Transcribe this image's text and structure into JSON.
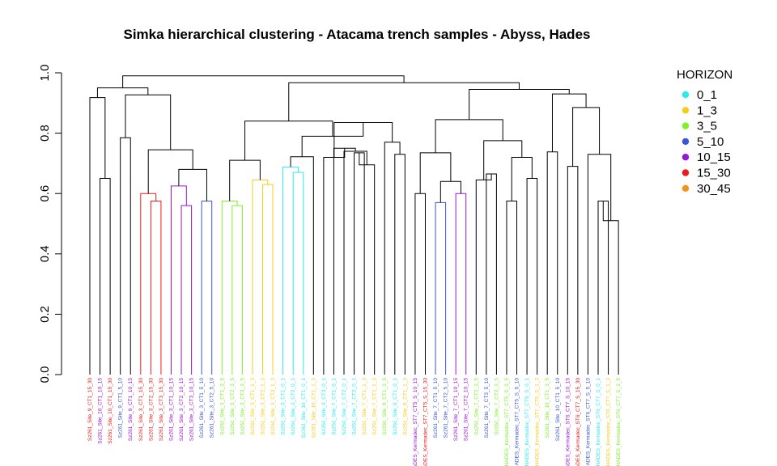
{
  "chart_data": {
    "type": "dendrogram",
    "title": "Simka hierarchical clustering - Atacama trench samples - Abyss, Hades",
    "ylim": [
      0,
      1
    ],
    "yticks": [
      0.0,
      0.2,
      0.4,
      0.6,
      0.8,
      1.0
    ],
    "grid": false,
    "legend": {
      "title": "HORIZON",
      "placement": "right",
      "entries": [
        {
          "name": "0_1",
          "color": "#29ecf2"
        },
        {
          "name": "1_3",
          "color": "#f7cc1c"
        },
        {
          "name": "3_5",
          "color": "#7df22b"
        },
        {
          "name": "5_10",
          "color": "#3a55d6"
        },
        {
          "name": "10_15",
          "color": "#9a14d6"
        },
        {
          "name": "15_30",
          "color": "#ee1b1b"
        },
        {
          "name": "30_45",
          "color": "#f29418"
        }
      ]
    },
    "leaves": [
      {
        "label": "Sz261_Site_9_CT1_15_30",
        "horizon": "15_30"
      },
      {
        "label": "Sz261_Site_10_CT1_10_15",
        "horizon": "10_15"
      },
      {
        "label": "Sz261_Site_10_CT1_15_30",
        "horizon": "15_30"
      },
      {
        "label": "Sz261_Site_9_CT1_5_10",
        "horizon": "5_10"
      },
      {
        "label": "Sz261_Site_9_CT1_10_15",
        "horizon": "10_15"
      },
      {
        "label": "Sz261_Site_3_CT1_15_30",
        "horizon": "15_30"
      },
      {
        "label": "Sz261_Site_3_CT2_15_30",
        "horizon": "15_30"
      },
      {
        "label": "Sz261_Site_3_CT3_15_30",
        "horizon": "15_30"
      },
      {
        "label": "Sz261_Site_3_CT1_10_15",
        "horizon": "10_15"
      },
      {
        "label": "Sz261_Site_3_CT2_10_15",
        "horizon": "10_15"
      },
      {
        "label": "Sz261_Site_3_CT3_10_15",
        "horizon": "10_15"
      },
      {
        "label": "Sz261_Site_3_CT1_5_10",
        "horizon": "5_10"
      },
      {
        "label": "Sz261_Site_3_CT2_5_10",
        "horizon": "5_10"
      },
      {
        "label": "Sz261_Site_3_CT1_3_5",
        "horizon": "3_5"
      },
      {
        "label": "Sz261_Site_3_CT2_3_5",
        "horizon": "3_5"
      },
      {
        "label": "Sz261_Site_3_CT3_3_5",
        "horizon": "3_5"
      },
      {
        "label": "Sz261_Site_3_CT1_1_3",
        "horizon": "1_3"
      },
      {
        "label": "Sz261_Site_3_CT2_1_3",
        "horizon": "1_3"
      },
      {
        "label": "Sz261_Site_3_CT3_1_3",
        "horizon": "1_3"
      },
      {
        "label": "Sz261_Site_3_CT1_0_1",
        "horizon": "0_1"
      },
      {
        "label": "Sz261_Site_3_CT2_0_1",
        "horizon": "0_1"
      },
      {
        "label": "Sz261_Site_10_CT1_0_1",
        "horizon": "0_1"
      },
      {
        "label": "Sz261_Site_10_CT1_1_3",
        "horizon": "1_3"
      },
      {
        "label": "Sz261_Site_3_CT3_0_1",
        "horizon": "0_1"
      },
      {
        "label": "Sz261_Site_7_CT1_0_1",
        "horizon": "0_1"
      },
      {
        "label": "Sz261_Site_7_CT2_0_1",
        "horizon": "0_1"
      },
      {
        "label": "Sz261_Site_7_CT3_0_1",
        "horizon": "0_1"
      },
      {
        "label": "Sz261_Site_7_CT1_1_3",
        "horizon": "1_3"
      },
      {
        "label": "Sz261_Site_7_CT2_1_3",
        "horizon": "1_3"
      },
      {
        "label": "Sz261_Site_9_CT1_3_5",
        "horizon": "3_5"
      },
      {
        "label": "Sz261_Site_9_CT1_0_1",
        "horizon": "0_1"
      },
      {
        "label": "Sz261_Site_9_CT1_1_3",
        "horizon": "1_3"
      },
      {
        "label": "HADES_Kermadec_ST7_CT5_S_10_15",
        "horizon": "10_15"
      },
      {
        "label": "HADES_Kermadec_ST7_CT5_S_15_30",
        "horizon": "15_30"
      },
      {
        "label": "Sz261_Site_7_CT1_5_10",
        "horizon": "5_10"
      },
      {
        "label": "Sz261_Site_7_CT2_5_10",
        "horizon": "5_10"
      },
      {
        "label": "Sz261_Site_7_CT1_10_15",
        "horizon": "10_15"
      },
      {
        "label": "Sz261_Site_7_CT2_10_15",
        "horizon": "10_15"
      },
      {
        "label": "Sz261_Site_7_CT2_3_5",
        "horizon": "3_5"
      },
      {
        "label": "Sz261_Site_7_CT3_5_10",
        "horizon": "5_10"
      },
      {
        "label": "Sz261_Site_7_CT3_3_5",
        "horizon": "3_5"
      },
      {
        "label": "HADES_Kermadec_ST7_CT5_S_3_5",
        "horizon": "3_5"
      },
      {
        "label": "HADES_Kermadec_ST7_CT5_S_5_10",
        "horizon": "5_10"
      },
      {
        "label": "HADES_Kermadec_ST7_CT5_S_0_1",
        "horizon": "0_1"
      },
      {
        "label": "HADES_Kermadec_ST7_CT5_S_1_3",
        "horizon": "1_3"
      },
      {
        "label": "Sz261_Site_10_CT1_3_5",
        "horizon": "3_5"
      },
      {
        "label": "Sz261_Site_10_CT1_5_10",
        "horizon": "5_10"
      },
      {
        "label": "HADES_Kermadec_ST6_CT7_S_10_15",
        "horizon": "10_15"
      },
      {
        "label": "HADES_Kermadec_ST6_CT7_S_15_30",
        "horizon": "15_30"
      },
      {
        "label": "HADES_Kermadec_ST6_CT7_S_5_10",
        "horizon": "5_10"
      },
      {
        "label": "HADES_Kermadec_ST6_CT7_S_0_1",
        "horizon": "0_1"
      },
      {
        "label": "HADES_Kermadec_ST6_CT7_S_1_3",
        "horizon": "1_3"
      },
      {
        "label": "HADES_Kermadec_ST6_CT7_S_3_5",
        "horizon": "3_5"
      }
    ],
    "merges": [
      {
        "a": "L3",
        "b": "L4",
        "h": 0.785
      },
      {
        "a": "L1",
        "b": "L2",
        "h": 0.65
      },
      {
        "a": "L0",
        "b": "N1",
        "h": 0.918
      },
      {
        "a": "L6",
        "b": "L7",
        "h": 0.575
      },
      {
        "a": "L5",
        "b": "N3",
        "h": 0.6
      },
      {
        "a": "L9",
        "b": "L10",
        "h": 0.56
      },
      {
        "a": "L8",
        "b": "N5",
        "h": 0.625
      },
      {
        "a": "L11",
        "b": "L12",
        "h": 0.575
      },
      {
        "a": "N6",
        "b": "N7",
        "h": 0.68
      },
      {
        "a": "N4",
        "b": "N8",
        "h": 0.745
      },
      {
        "a": "N0",
        "b": "N9",
        "h": 0.927
      },
      {
        "a": "N2",
        "b": "N10",
        "h": 0.95
      },
      {
        "a": "L14",
        "b": "L15",
        "h": 0.56
      },
      {
        "a": "L13",
        "b": "N12",
        "h": 0.575
      },
      {
        "a": "L17",
        "b": "L18",
        "h": 0.63
      },
      {
        "a": "L16",
        "b": "N14",
        "h": 0.645
      },
      {
        "a": "N13",
        "b": "N15",
        "h": 0.71
      },
      {
        "a": "L20",
        "b": "L21",
        "h": 0.67
      },
      {
        "a": "L19",
        "b": "N17",
        "h": 0.688
      },
      {
        "a": "N18",
        "b": "L22",
        "h": 0.722
      },
      {
        "a": "L26",
        "b": "L27",
        "h": 0.735
      },
      {
        "a": "L28",
        "b": "N20",
        "h": 0.695
      },
      {
        "a": "L25",
        "b": "N21",
        "h": 0.74
      },
      {
        "a": "L24",
        "b": "N22",
        "h": 0.75
      },
      {
        "a": "L23",
        "b": "N23",
        "h": 0.72
      },
      {
        "a": "L30",
        "b": "L31",
        "h": 0.73
      },
      {
        "a": "L29",
        "b": "N25",
        "h": 0.77
      },
      {
        "a": "N24",
        "b": "N26",
        "h": 0.835
      },
      {
        "a": "N19",
        "b": "N27",
        "h": 0.79
      },
      {
        "a": "N16",
        "b": "N28",
        "h": 0.84
      },
      {
        "a": "L32",
        "b": "L33",
        "h": 0.6
      },
      {
        "a": "L34",
        "b": "L35",
        "h": 0.57
      },
      {
        "a": "L36",
        "b": "L37",
        "h": 0.6
      },
      {
        "a": "N31",
        "b": "N32",
        "h": 0.64
      },
      {
        "a": "N30",
        "b": "N33",
        "h": 0.735
      },
      {
        "a": "L39",
        "b": "L40",
        "h": 0.665
      },
      {
        "a": "L38",
        "b": "N35",
        "h": 0.645
      },
      {
        "a": "L41",
        "b": "L42",
        "h": 0.575
      },
      {
        "a": "L43",
        "b": "L44",
        "h": 0.65
      },
      {
        "a": "N37",
        "b": "N38",
        "h": 0.72
      },
      {
        "a": "N36",
        "b": "N39",
        "h": 0.775
      },
      {
        "a": "N34",
        "b": "N40",
        "h": 0.845
      },
      {
        "a": "L45",
        "b": "L46",
        "h": 0.738
      },
      {
        "a": "L47",
        "b": "L48",
        "h": 0.69
      },
      {
        "a": "L50",
        "b": "L51",
        "h": 0.575
      },
      {
        "a": "N44",
        "b": "L52",
        "h": 0.51
      },
      {
        "a": "L49",
        "b": "N45",
        "h": 0.73
      },
      {
        "a": "N43",
        "b": "N46",
        "h": 0.885
      },
      {
        "a": "N42",
        "b": "N47",
        "h": 0.93
      },
      {
        "a": "N41",
        "b": "N48",
        "h": 0.945
      },
      {
        "a": "N29",
        "b": "N49",
        "h": 0.967
      },
      {
        "a": "N11",
        "b": "N50",
        "h": 0.99
      }
    ]
  }
}
